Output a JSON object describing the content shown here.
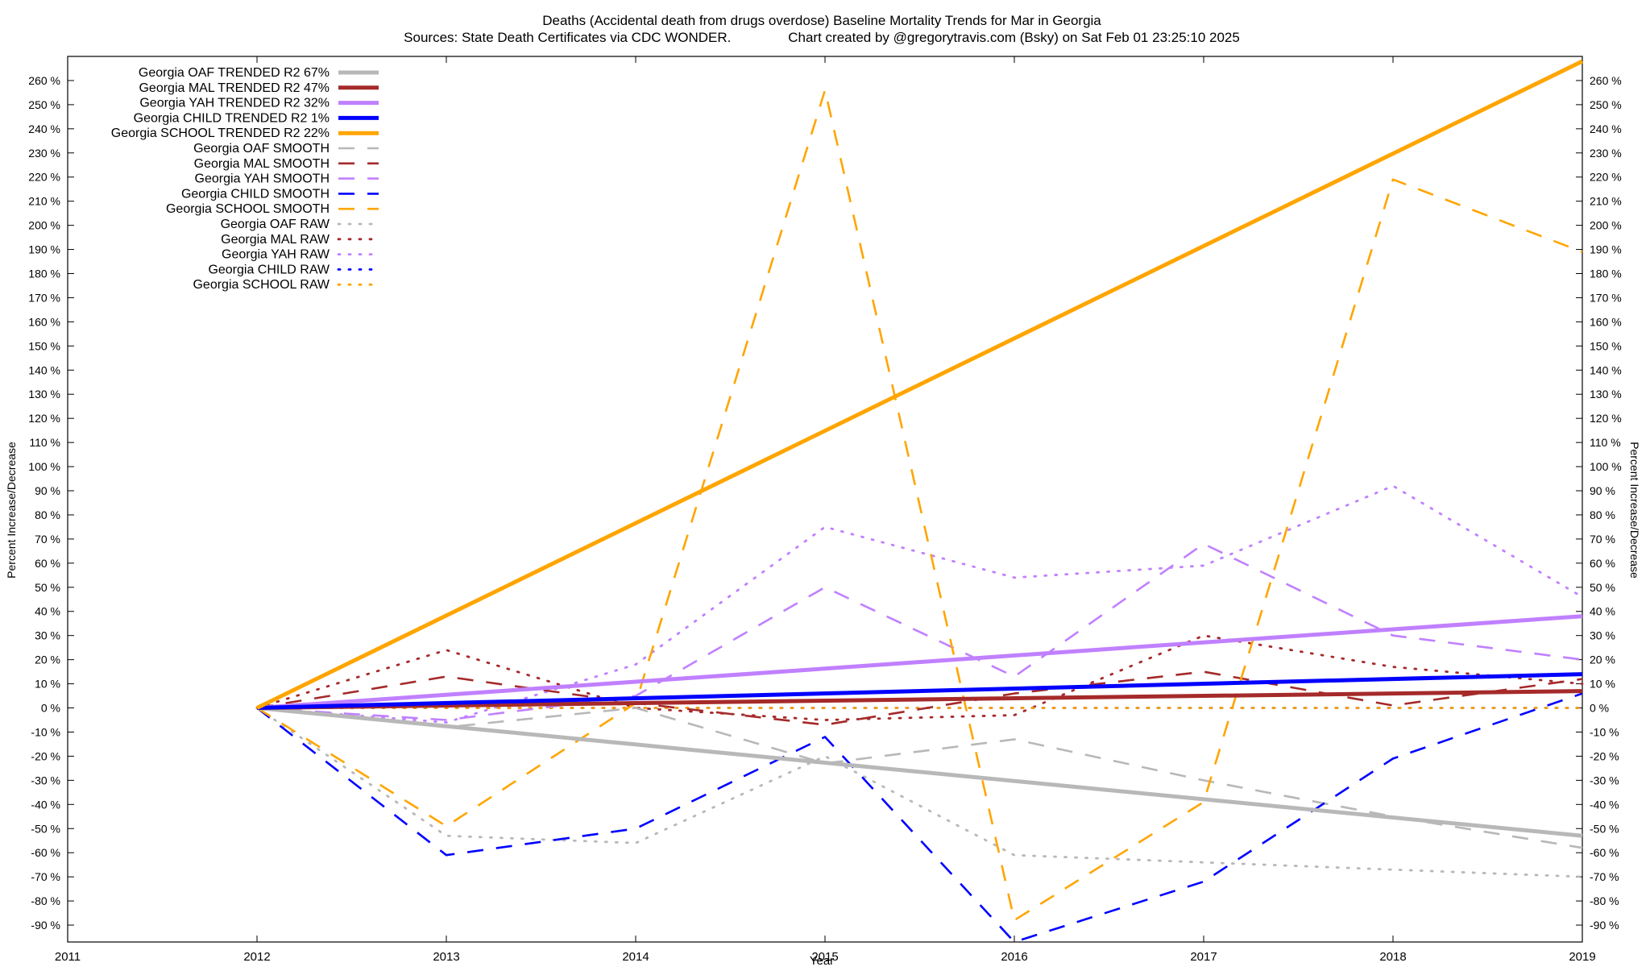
{
  "chart_data": {
    "type": "line",
    "title": "Deaths (Accidental death from drugs overdose)  Baseline Mortality Trends for Mar in Georgia",
    "subtitle": "Sources: State Death Certificates via CDC WONDER.               Chart created by @gregorytravis.com (Bsky) on Sat Feb 01 23:25:10 2025",
    "xlabel": "Year",
    "ylabel": "Percent Increase/Decrease",
    "y2label": "Percent Increase/Decrease",
    "xlim": [
      2011,
      2019
    ],
    "ylim": [
      -97,
      270
    ],
    "x_ticks": [
      2011,
      2012,
      2013,
      2014,
      2015,
      2016,
      2017,
      2018,
      2019
    ],
    "y_ticks": [
      -90,
      -80,
      -70,
      -60,
      -50,
      -40,
      -30,
      -20,
      -10,
      0,
      10,
      20,
      30,
      40,
      50,
      60,
      70,
      80,
      90,
      100,
      110,
      120,
      130,
      140,
      150,
      160,
      170,
      180,
      190,
      200,
      210,
      220,
      230,
      240,
      250,
      260
    ],
    "y_tick_suffix": " %",
    "grid": false,
    "legend_position": "top-left",
    "colors": {
      "oaf": "#b8b8b8",
      "mal": "#a52a2a",
      "yah": "#c080ff",
      "child": "#0000ff",
      "school": "#ffa500"
    },
    "series": [
      {
        "name": "Georgia OAF TRENDED R2  67%",
        "style": "trend",
        "color": "#b8b8b8",
        "x": [
          2012,
          2019
        ],
        "y": [
          0,
          -53
        ]
      },
      {
        "name": "Georgia MAL TRENDED R2  47%",
        "style": "trend",
        "color": "#a52a2a",
        "x": [
          2012,
          2019
        ],
        "y": [
          0,
          7
        ]
      },
      {
        "name": "Georgia YAH TRENDED R2  32%",
        "style": "trend",
        "color": "#c080ff",
        "x": [
          2012,
          2019
        ],
        "y": [
          0,
          38
        ]
      },
      {
        "name": "Georgia CHILD TRENDED R2   1%",
        "style": "trend",
        "color": "#0000ff",
        "x": [
          2012,
          2019
        ],
        "y": [
          0,
          14
        ]
      },
      {
        "name": "Georgia SCHOOL TRENDED R2  22%",
        "style": "trend",
        "color": "#ffa500",
        "x": [
          2012,
          2019
        ],
        "y": [
          0,
          268
        ]
      },
      {
        "name": "Georgia OAF SMOOTH",
        "style": "smooth",
        "color": "#b8b8b8",
        "x": [
          2012,
          2013,
          2014,
          2015,
          2016,
          2017,
          2018,
          2019
        ],
        "y": [
          0,
          -8,
          0,
          -23,
          -13,
          -30,
          -45,
          -58
        ]
      },
      {
        "name": "Georgia MAL SMOOTH",
        "style": "smooth",
        "color": "#a52a2a",
        "x": [
          2012,
          2013,
          2014,
          2015,
          2016,
          2017,
          2018,
          2019
        ],
        "y": [
          0,
          13,
          2,
          -7,
          6,
          15,
          1,
          12
        ]
      },
      {
        "name": "Georgia YAH SMOOTH",
        "style": "smooth",
        "color": "#c080ff",
        "x": [
          2012,
          2013,
          2014,
          2015,
          2016,
          2017,
          2018,
          2019
        ],
        "y": [
          0,
          -5,
          5,
          50,
          13,
          68,
          30,
          20
        ]
      },
      {
        "name": "Georgia CHILD SMOOTH",
        "style": "smooth",
        "color": "#0000ff",
        "x": [
          2012,
          2013,
          2014,
          2015,
          2016,
          2017,
          2018,
          2019
        ],
        "y": [
          0,
          -61,
          -50,
          -12,
          -97,
          -72,
          -21,
          6
        ]
      },
      {
        "name": "Georgia SCHOOL SMOOTH",
        "style": "smooth",
        "color": "#ffa500",
        "x": [
          2012,
          2013,
          2014,
          2015,
          2016,
          2017,
          2018,
          2019
        ],
        "y": [
          0,
          -49,
          2,
          256,
          -88,
          -39,
          219,
          189
        ]
      },
      {
        "name": "Georgia OAF RAW",
        "style": "raw",
        "color": "#b8b8b8",
        "x": [
          2012,
          2013,
          2014,
          2015,
          2016,
          2017,
          2018,
          2019
        ],
        "y": [
          0,
          -53,
          -56,
          -20,
          -61,
          -64,
          -67,
          -70
        ]
      },
      {
        "name": "Georgia MAL RAW",
        "style": "raw",
        "color": "#a52a2a",
        "x": [
          2012,
          2013,
          2014,
          2015,
          2016,
          2017,
          2018,
          2019
        ],
        "y": [
          0,
          24,
          0,
          -5,
          -3,
          30,
          17,
          10
        ]
      },
      {
        "name": "Georgia YAH RAW",
        "style": "raw",
        "color": "#c080ff",
        "x": [
          2012,
          2013,
          2014,
          2015,
          2016,
          2017,
          2018,
          2019
        ],
        "y": [
          0,
          -6,
          18,
          75,
          54,
          59,
          92,
          46
        ]
      },
      {
        "name": "Georgia CHILD RAW",
        "style": "raw",
        "color": "#0000ff",
        "x": [
          2012,
          2013,
          2014,
          2015,
          2016,
          2017,
          2018,
          2019
        ],
        "y": [
          0,
          0,
          0,
          0,
          0,
          0,
          0,
          0
        ]
      },
      {
        "name": "Georgia SCHOOL RAW",
        "style": "raw",
        "color": "#ffa500",
        "x": [
          2012,
          2013,
          2014,
          2015,
          2016,
          2017,
          2018,
          2019
        ],
        "y": [
          0,
          0,
          0,
          0,
          0,
          0,
          0,
          0
        ]
      }
    ]
  }
}
